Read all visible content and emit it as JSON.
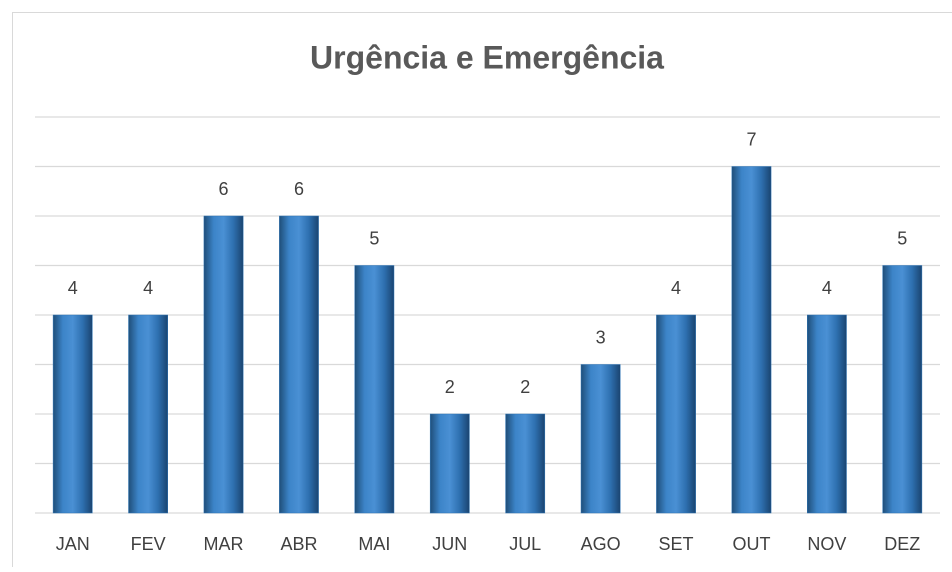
{
  "chart_data": {
    "type": "bar",
    "title": "Urgência e Emergência",
    "categories": [
      "JAN",
      "FEV",
      "MAR",
      "ABR",
      "MAI",
      "JUN",
      "JUL",
      "AGO",
      "SET",
      "OUT",
      "NOV",
      "DEZ"
    ],
    "values": [
      4,
      4,
      6,
      6,
      5,
      2,
      2,
      3,
      4,
      7,
      4,
      5
    ],
    "color": "#2e75b6",
    "ylim": [
      0,
      8
    ],
    "yticks": [
      0,
      1,
      2,
      3,
      4,
      5,
      6,
      7,
      8
    ],
    "grid": true
  }
}
